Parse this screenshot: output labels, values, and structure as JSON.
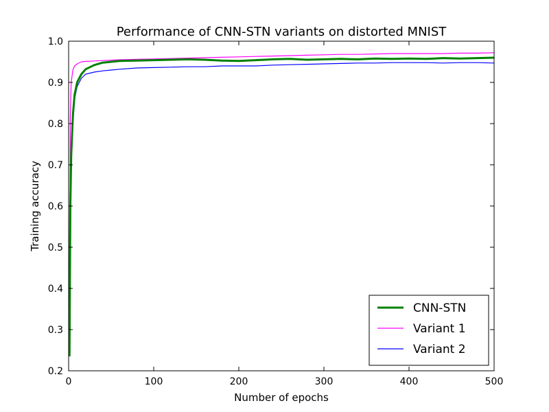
{
  "chart_data": {
    "type": "line",
    "title": "Performance of CNN-STN variants on distorted MNIST",
    "xlabel": "Number of epochs",
    "ylabel": "Training accuracy",
    "xlim": [
      0,
      500
    ],
    "ylim": [
      0.2,
      1.0
    ],
    "xticks": [
      0,
      100,
      200,
      300,
      400,
      500
    ],
    "yticks": [
      0.2,
      0.3,
      0.4,
      0.5,
      0.6,
      0.7,
      0.8,
      0.9,
      1.0
    ],
    "xtick_labels": [
      "0",
      "100",
      "200",
      "300",
      "400",
      "500"
    ],
    "ytick_labels": [
      "0.2",
      "0.3",
      "0.4",
      "0.5",
      "0.6",
      "0.7",
      "0.8",
      "0.9",
      "1.0"
    ],
    "grid": false,
    "legend_position": "lower-right",
    "series": [
      {
        "name": "CNN-STN",
        "color": "#008000",
        "x": [
          1,
          2,
          3,
          5,
          7,
          10,
          15,
          20,
          30,
          40,
          50,
          60,
          80,
          100,
          120,
          140,
          160,
          180,
          200,
          220,
          240,
          260,
          280,
          300,
          320,
          340,
          360,
          380,
          400,
          420,
          440,
          460,
          480,
          500
        ],
        "y": [
          0.235,
          0.6,
          0.72,
          0.82,
          0.87,
          0.9,
          0.92,
          0.932,
          0.942,
          0.948,
          0.95,
          0.952,
          0.953,
          0.954,
          0.955,
          0.956,
          0.955,
          0.953,
          0.952,
          0.954,
          0.956,
          0.957,
          0.955,
          0.956,
          0.957,
          0.956,
          0.958,
          0.957,
          0.958,
          0.957,
          0.959,
          0.958,
          0.959,
          0.96
        ]
      },
      {
        "name": "Variant 1",
        "color": "#ff00ff",
        "x": [
          1,
          2,
          3,
          5,
          7,
          10,
          15,
          20,
          30,
          40,
          50,
          60,
          80,
          100,
          120,
          140,
          160,
          180,
          200,
          220,
          240,
          260,
          280,
          300,
          320,
          340,
          360,
          380,
          400,
          420,
          440,
          460,
          480,
          500
        ],
        "y": [
          0.24,
          0.82,
          0.9,
          0.93,
          0.94,
          0.945,
          0.95,
          0.951,
          0.952,
          0.953,
          0.954,
          0.955,
          0.956,
          0.957,
          0.958,
          0.959,
          0.96,
          0.961,
          0.962,
          0.963,
          0.964,
          0.965,
          0.966,
          0.967,
          0.968,
          0.968,
          0.969,
          0.97,
          0.97,
          0.97,
          0.97,
          0.971,
          0.971,
          0.972
        ]
      },
      {
        "name": "Variant 2",
        "color": "#0000ff",
        "x": [
          1,
          2,
          3,
          5,
          7,
          10,
          15,
          20,
          30,
          40,
          50,
          60,
          80,
          100,
          120,
          140,
          160,
          180,
          200,
          220,
          240,
          260,
          280,
          300,
          320,
          340,
          360,
          380,
          400,
          420,
          440,
          460,
          480,
          500
        ],
        "y": [
          0.24,
          0.55,
          0.7,
          0.8,
          0.86,
          0.89,
          0.91,
          0.92,
          0.925,
          0.928,
          0.93,
          0.932,
          0.935,
          0.936,
          0.937,
          0.938,
          0.938,
          0.94,
          0.94,
          0.94,
          0.942,
          0.943,
          0.944,
          0.945,
          0.946,
          0.947,
          0.947,
          0.948,
          0.948,
          0.948,
          0.947,
          0.948,
          0.948,
          0.947
        ]
      }
    ]
  }
}
